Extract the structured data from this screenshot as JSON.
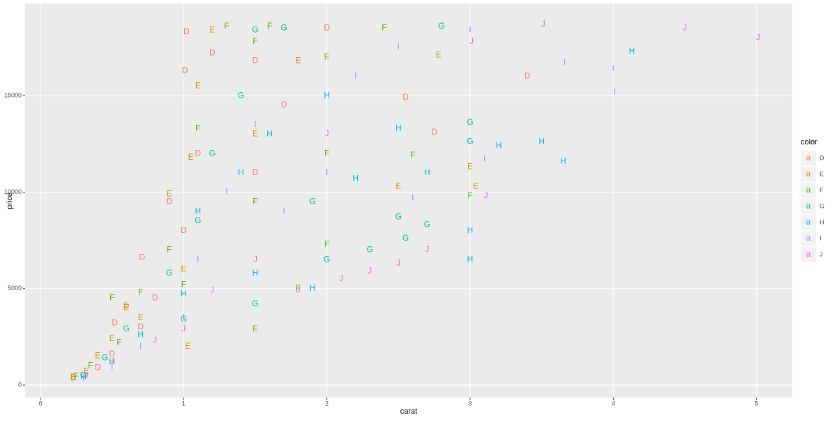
{
  "chart_data": {
    "type": "scatter",
    "x_label": "carat",
    "y_label": "price",
    "xlim": [
      -0.107,
      5.25
    ],
    "ylim": [
      -650,
      19780
    ],
    "xticks": [
      0,
      1,
      2,
      3,
      4,
      5
    ],
    "yticks": [
      0,
      5000,
      10000,
      15000
    ],
    "grid": true,
    "legend_title": "color",
    "legend_position": "right",
    "legend_key_glyph": "a",
    "series": [
      {
        "name": "D",
        "color": "#F8766D",
        "x": [
          0.23,
          0.3,
          0.4,
          0.5,
          0.52,
          0.6,
          0.7,
          0.71,
          0.8,
          0.9,
          1.0,
          1.01,
          1.02,
          1.1,
          1.2,
          1.5,
          1.5,
          1.7,
          2.0,
          2.55,
          2.75,
          3.4
        ],
        "values": [
          350,
          500,
          900,
          1600,
          3200,
          4100,
          3000,
          6600,
          4500,
          9500,
          8000,
          16300,
          18300,
          12000,
          17200,
          16800,
          11000,
          14500,
          18500,
          14900,
          13100,
          16000
        ]
      },
      {
        "name": "E",
        "color": "#C49A00",
        "x": [
          0.23,
          0.32,
          0.4,
          0.5,
          0.6,
          0.7,
          0.9,
          1.0,
          1.03,
          1.05,
          1.1,
          1.2,
          1.5,
          1.5,
          1.8,
          2.0,
          2.5,
          2.78,
          3.0,
          3.04
        ],
        "values": [
          400,
          700,
          1500,
          2400,
          4000,
          3500,
          9900,
          6000,
          2000,
          11800,
          15500,
          18400,
          13000,
          2900,
          16800,
          17000,
          10300,
          17100,
          11300,
          10300
        ]
      },
      {
        "name": "F",
        "color": "#53B400",
        "x": [
          0.25,
          0.35,
          0.5,
          0.55,
          0.7,
          0.9,
          1.0,
          1.1,
          1.3,
          1.5,
          1.5,
          1.6,
          1.8,
          2.0,
          2.0,
          2.4,
          2.6,
          3.0
        ],
        "values": [
          450,
          1000,
          4500,
          2200,
          4800,
          7000,
          5200,
          13300,
          18600,
          9500,
          17800,
          18600,
          5000,
          12000,
          7300,
          18500,
          11900,
          9800
        ]
      },
      {
        "name": "G",
        "color": "#00C094",
        "x": [
          0.3,
          0.45,
          0.6,
          0.9,
          1.0,
          1.1,
          1.2,
          1.4,
          1.5,
          1.5,
          1.7,
          1.9,
          2.0,
          2.3,
          2.5,
          2.55,
          2.7,
          2.8,
          3.0,
          3.0
        ],
        "values": [
          500,
          1400,
          2900,
          5800,
          3400,
          8500,
          12000,
          15000,
          18400,
          4200,
          18500,
          9500,
          6500,
          7000,
          8700,
          7600,
          8300,
          18600,
          13600,
          12600
        ]
      },
      {
        "name": "H",
        "color": "#00B6EB",
        "x": [
          0.3,
          0.5,
          0.7,
          1.0,
          1.1,
          1.4,
          1.5,
          1.6,
          1.9,
          2.0,
          2.2,
          2.5,
          2.7,
          3.0,
          3.0,
          3.5,
          3.65,
          4.13,
          3.2
        ],
        "values": [
          400,
          1200,
          2600,
          4700,
          9000,
          11000,
          5800,
          13000,
          5000,
          15000,
          10700,
          13300,
          11000,
          6500,
          8000,
          12600,
          11600,
          17300,
          12400
        ]
      },
      {
        "name": "I",
        "color": "#A58AFF",
        "x": [
          0.3,
          0.5,
          0.7,
          1.0,
          1.1,
          1.3,
          1.5,
          1.7,
          2.0,
          2.2,
          2.5,
          3.0,
          3.1,
          3.66,
          4.0,
          4.01,
          2.6
        ],
        "values": [
          350,
          900,
          2000,
          3500,
          6500,
          10000,
          13500,
          9000,
          11000,
          16000,
          17500,
          18400,
          11700,
          16700,
          16400,
          15200,
          9700
        ]
      },
      {
        "name": "J",
        "color": "#FB61D7",
        "x": [
          0.32,
          0.5,
          0.8,
          1.0,
          1.2,
          1.5,
          1.8,
          2.0,
          2.1,
          2.3,
          2.5,
          2.7,
          3.01,
          3.11,
          3.51,
          4.5,
          5.01
        ],
        "values": [
          500,
          1200,
          2300,
          2900,
          4900,
          6500,
          4900,
          13000,
          5500,
          5900,
          6300,
          7000,
          17800,
          9800,
          18700,
          18500,
          18000
        ]
      }
    ]
  }
}
